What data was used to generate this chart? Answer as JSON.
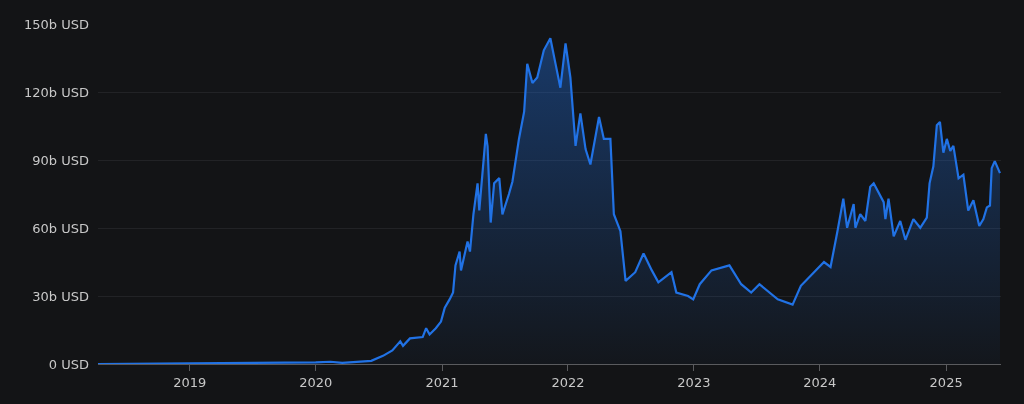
{
  "chart_data": {
    "type": "area",
    "grid": "y",
    "xlim": [
      "2018-04-10",
      "2025-06-09"
    ],
    "xticks": [
      {
        "value": "2019-01-01",
        "label": "2019"
      },
      {
        "value": "2020-01-01",
        "label": "2020"
      },
      {
        "value": "2021-01-01",
        "label": "2021"
      },
      {
        "value": "2022-01-01",
        "label": "2022"
      },
      {
        "value": "2023-01-01",
        "label": "2023"
      },
      {
        "value": "2024-01-01",
        "label": "2024"
      },
      {
        "value": "2025-01-01",
        "label": "2025"
      }
    ],
    "ylim": [
      0,
      150
    ],
    "yticks": [
      {
        "value": 0,
        "label": "0 USD"
      },
      {
        "value": 30,
        "label": "30b USD"
      },
      {
        "value": 60,
        "label": "60b USD"
      },
      {
        "value": 90,
        "label": "90b USD"
      },
      {
        "value": 120,
        "label": "120b USD"
      },
      {
        "value": 150,
        "label": "150b USD"
      }
    ],
    "x": [
      "2018-04-10",
      "2019-01-01",
      "2019-07-05",
      "2020-01-01",
      "2020-02-13",
      "2020-03-18",
      "2020-06-10",
      "2020-07-14",
      "2020-08-10",
      "2020-09-02",
      "2020-09-10",
      "2020-09-30",
      "2020-11-06",
      "2020-11-16",
      "2020-11-26",
      "2020-12-14",
      "2020-12-29",
      "2021-01-09",
      "2021-01-23",
      "2021-02-02",
      "2021-02-09",
      "2021-02-21",
      "2021-02-25",
      "2021-03-16",
      "2021-03-23",
      "2021-04-02",
      "2021-04-14",
      "2021-04-19",
      "2021-05-08",
      "2021-05-13",
      "2021-05-22",
      "2021-06-01",
      "2021-06-16",
      "2021-06-25",
      "2021-07-14",
      "2021-07-24",
      "2021-08-12",
      "2021-08-27",
      "2021-09-05",
      "2021-09-20",
      "2021-10-04",
      "2021-10-23",
      "2021-11-11",
      "2021-11-26",
      "2021-12-10",
      "2021-12-25",
      "2022-01-08",
      "2022-01-23",
      "2022-02-06",
      "2022-02-21",
      "2022-03-07",
      "2022-04-01",
      "2022-04-15",
      "2022-05-04",
      "2022-05-14",
      "2022-06-02",
      "2022-06-17",
      "2022-07-15",
      "2022-08-08",
      "2022-09-01",
      "2022-09-20",
      "2022-10-28",
      "2022-11-11",
      "2022-12-15",
      "2022-12-30",
      "2023-01-18",
      "2023-02-21",
      "2023-04-14",
      "2023-05-18",
      "2023-06-16",
      "2023-07-10",
      "2023-09-01",
      "2023-10-14",
      "2023-11-07",
      "2023-12-06",
      "2024-01-13",
      "2024-02-01",
      "2024-02-21",
      "2024-03-09",
      "2024-03-20",
      "2024-04-08",
      "2024-04-13",
      "2024-04-27",
      "2024-05-12",
      "2024-05-26",
      "2024-06-05",
      "2024-07-04",
      "2024-07-09",
      "2024-07-18",
      "2024-08-02",
      "2024-08-21",
      "2024-09-05",
      "2024-09-28",
      "2024-10-18",
      "2024-11-06",
      "2024-11-14",
      "2024-11-25",
      "2024-12-05",
      "2024-12-14",
      "2024-12-24",
      "2025-01-03",
      "2025-01-13",
      "2025-01-22",
      "2025-02-06",
      "2025-02-20",
      "2025-03-06",
      "2025-03-21",
      "2025-04-07",
      "2025-04-19",
      "2025-04-29",
      "2025-05-08",
      "2025-05-13",
      "2025-05-22",
      "2025-06-06"
    ],
    "series": [
      {
        "color": "#2172e5",
        "values": [
          0,
          0.3,
          0.5,
          0.7,
          1,
          0.5,
          1.4,
          3.6,
          6,
          10,
          8,
          11.3,
          11.9,
          15.8,
          13,
          15.8,
          18.7,
          24.8,
          28.5,
          31.6,
          43.5,
          49.6,
          41.3,
          54,
          49.6,
          66,
          79.7,
          67.8,
          101.5,
          96,
          62.4,
          79.7,
          82,
          66,
          75,
          80.4,
          99.3,
          111.3,
          132.4,
          124,
          126.4,
          138.4,
          143.7,
          132.4,
          121.9,
          141.4,
          126.4,
          96.2,
          110.6,
          94.8,
          88,
          109,
          99.3,
          99.3,
          66.1,
          58.6,
          36.7,
          40.5,
          48.8,
          41.3,
          36,
          40.5,
          31.5,
          30,
          28.5,
          35.2,
          41.3,
          43.5,
          35.2,
          31.5,
          35.2,
          28.5,
          26.2,
          34.5,
          39,
          45,
          42.8,
          58.6,
          72.9,
          60.1,
          70.6,
          60.1,
          66.1,
          63.1,
          78.2,
          79.7,
          71.4,
          63.9,
          72.9,
          56.3,
          63.1,
          54.8,
          63.9,
          60.1,
          64.6,
          79.7,
          87.2,
          105.3,
          106.8,
          93.2,
          99.3,
          94,
          96.2,
          81.9,
          83.5,
          67.7,
          72.2,
          60.9,
          63.9,
          69.1,
          69.9,
          86.4,
          89.5,
          84.2
        ]
      }
    ]
  }
}
